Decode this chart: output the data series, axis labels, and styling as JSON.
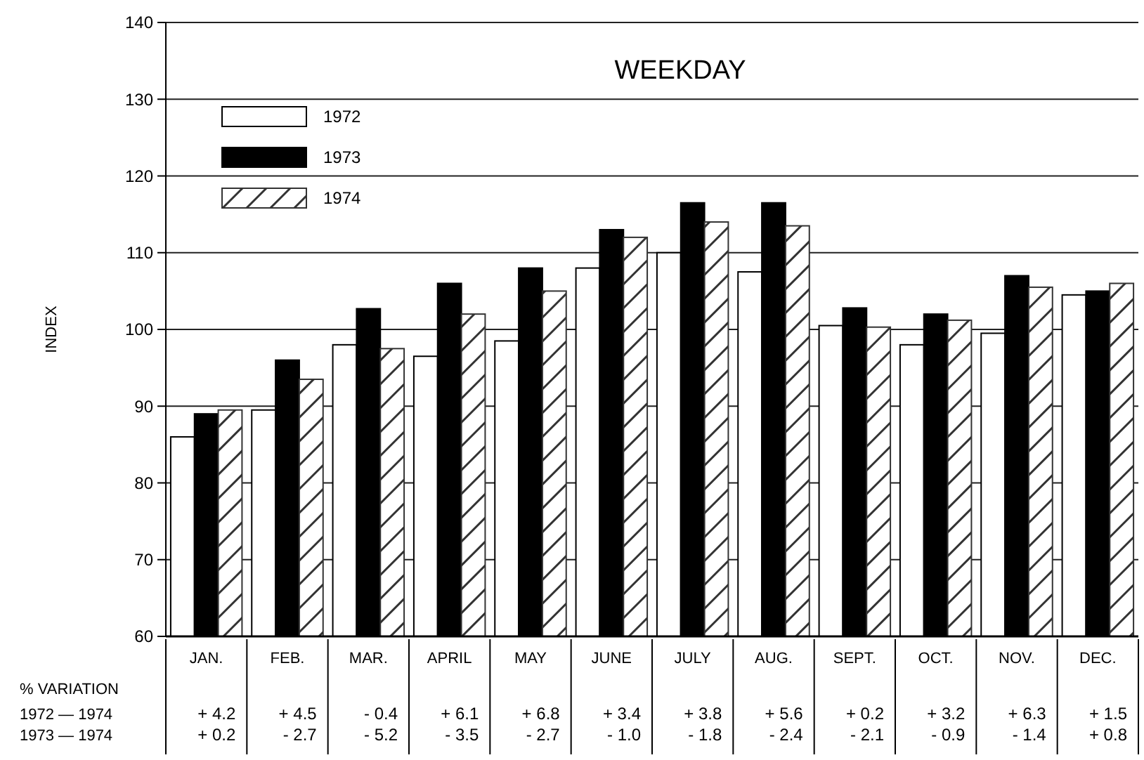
{
  "chart_data": {
    "type": "bar",
    "title": "WEEKDAY",
    "ylabel": "INDEX",
    "categories": [
      "JAN.",
      "FEB.",
      "MAR.",
      "APRIL",
      "MAY",
      "JUNE",
      "JULY",
      "AUG.",
      "SEPT.",
      "OCT.",
      "NOV.",
      "DEC."
    ],
    "series": [
      {
        "name": "1972",
        "color": "#ffffff",
        "values": [
          86,
          89.5,
          98,
          96.5,
          98.5,
          108,
          110,
          107.5,
          100.5,
          98,
          99.5,
          104.5
        ]
      },
      {
        "name": "1973",
        "color": "#000000",
        "values": [
          89,
          96,
          102.7,
          106,
          108,
          113,
          116.5,
          116.5,
          102.8,
          102,
          107,
          105
        ]
      },
      {
        "name": "1974",
        "color": "#333333",
        "values": [
          89.5,
          93.5,
          97.5,
          102,
          105,
          112,
          114,
          113.5,
          100.3,
          101.2,
          105.5,
          106
        ]
      }
    ],
    "ylim": [
      60,
      140
    ],
    "yticks": [
      60,
      70,
      80,
      90,
      100,
      110,
      120,
      130,
      140
    ],
    "grid": "y",
    "legend": "top left",
    "annotations": [
      "% VARIATION",
      "1972 — 1974",
      "1973 — 1974",
      "+ 4.2",
      "+ 4.5",
      "- 0.4",
      "+ 6.1",
      "+ 6.8",
      "+ 3.4",
      "+ 3.8",
      "+ 5.6",
      "+ 0.2",
      "+ 3.2",
      "+ 6.3",
      "+ 1.5",
      "+ 0.2",
      "- 2.7",
      "- 5.2",
      "- 3.5",
      "- 2.7",
      "- 1.0",
      "- 1.8",
      "- 2.4",
      "- 2.1",
      "- 0.9",
      "- 1.4",
      "+ 0.8"
    ]
  }
}
